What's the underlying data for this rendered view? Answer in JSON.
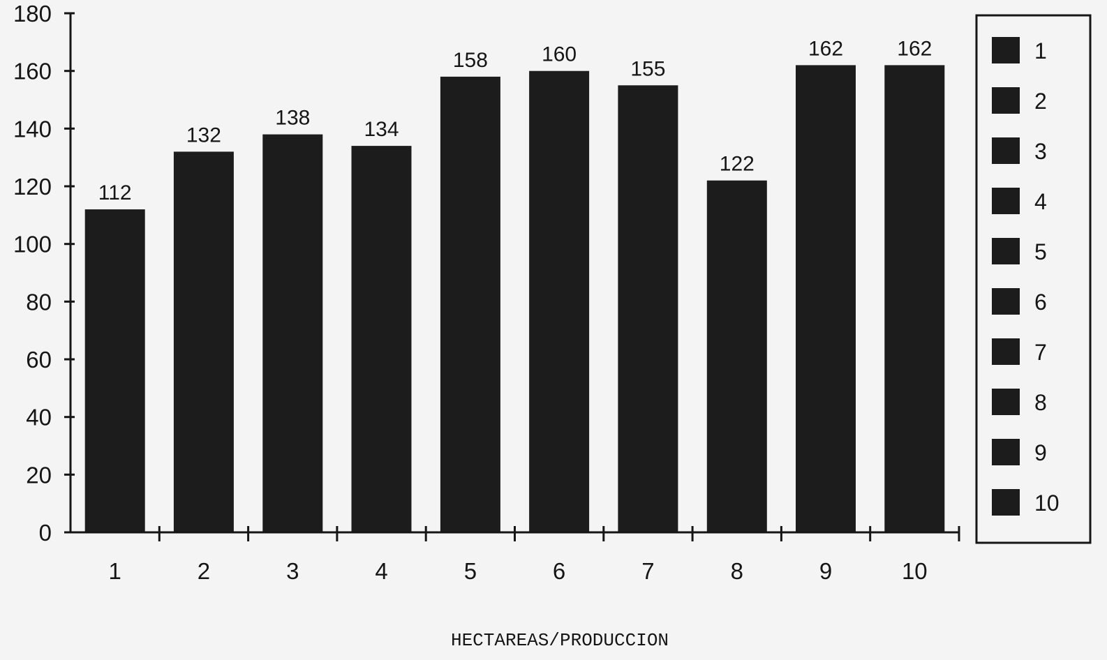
{
  "chart_data": {
    "type": "bar",
    "title": "",
    "xlabel": "HECTAREAS/PRODUCCION",
    "ylabel": "",
    "categories": [
      "1",
      "2",
      "3",
      "4",
      "5",
      "6",
      "7",
      "8",
      "9",
      "10"
    ],
    "values": [
      112,
      132,
      138,
      134,
      158,
      160,
      155,
      122,
      162,
      162
    ],
    "data_labels": [
      "112",
      "132",
      "138",
      "134",
      "158",
      "160",
      "155",
      "122",
      "162",
      "162"
    ],
    "yticks": [
      "0",
      "20",
      "40",
      "60",
      "80",
      "100",
      "120",
      "140",
      "160",
      "180"
    ],
    "ylim": [
      0,
      180
    ],
    "grid": false,
    "legend": {
      "placement": "right",
      "entries": [
        "1",
        "2",
        "3",
        "4",
        "5",
        "6",
        "7",
        "8",
        "9",
        "10"
      ]
    },
    "colors": {
      "bar": "#1c1c1c",
      "axis": "#151515",
      "background": "#f4f4f4"
    }
  }
}
